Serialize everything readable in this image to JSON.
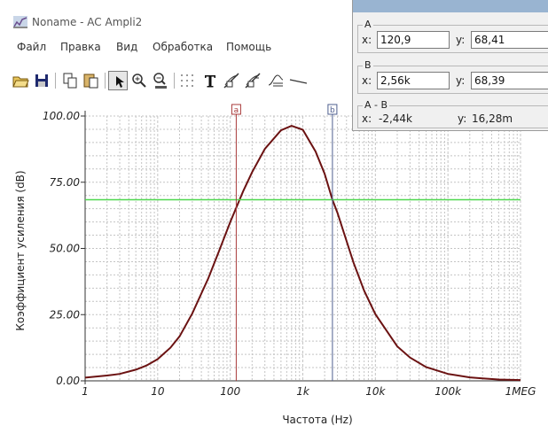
{
  "window": {
    "title": "Noname - AC Ampli2"
  },
  "menu": [
    "Файл",
    "Правка",
    "Вид",
    "Обработка",
    "Помощь"
  ],
  "toolbar": {
    "buttons": [
      "open-icon",
      "save-icon",
      "copy-icon",
      "paste-icon",
      "pointer-icon",
      "zoom-in-icon",
      "zoom-100-icon",
      "grid-icon",
      "text-icon",
      "cursor-a-icon",
      "cursor-b-icon",
      "baseline-icon",
      "line-icon"
    ]
  },
  "cursor_panel": {
    "a": {
      "label": "A",
      "x_label": "x:",
      "x_value": "120,9",
      "y_label": "y:",
      "y_value": "68,41"
    },
    "b": {
      "label": "B",
      "x_label": "x:",
      "x_value": "2,56k",
      "y_label": "y:",
      "y_value": "68,39"
    },
    "diff": {
      "label": "A - B",
      "x_label": "x:",
      "x_value": "-2,44k",
      "y_label": "y:",
      "y_value": "16,28m"
    }
  },
  "chart_data": {
    "type": "line",
    "xscale": "log",
    "xlim": [
      1,
      1000000
    ],
    "ylim": [
      0,
      100
    ],
    "xlabel": "Частота (Hz)",
    "ylabel": "Коэффициент усиления (dB)",
    "x_tick_labels": [
      "1",
      "10",
      "100",
      "1k",
      "10k",
      "100k",
      "1MEG"
    ],
    "y_tick_labels": [
      "0.00",
      "25.00",
      "50.00",
      "75.00",
      "100.00"
    ],
    "grid": true,
    "series": [
      {
        "color": "#6b1212",
        "x": [
          1,
          2,
          3,
          5,
          7,
          10,
          15,
          20,
          30,
          50,
          70,
          100,
          150,
          200,
          300,
          500,
          700,
          1000,
          1500,
          2000,
          2560,
          3000,
          5000,
          7000,
          10000,
          20000,
          30000,
          50000,
          100000,
          200000,
          300000,
          500000,
          1000000
        ],
        "y": [
          1.2,
          2.0,
          2.6,
          4.2,
          5.8,
          8.2,
          12.5,
          16.8,
          25.5,
          38.8,
          49.0,
          60.0,
          71.5,
          78.8,
          87.6,
          94.6,
          96.3,
          94.8,
          86.6,
          78.2,
          68.4,
          63.5,
          44.6,
          34.0,
          25.2,
          13.0,
          8.8,
          5.2,
          2.6,
          1.3,
          0.9,
          0.5,
          0.3
        ]
      },
      {
        "color": "#4fd84f",
        "x": [
          1,
          1000000
        ],
        "y": [
          68.4,
          68.4
        ]
      }
    ],
    "cursors": [
      {
        "tag": "a",
        "x": 120.9,
        "color": "#a83a3a"
      },
      {
        "tag": "b",
        "x": 2560,
        "color": "#4f5f8f"
      }
    ]
  }
}
